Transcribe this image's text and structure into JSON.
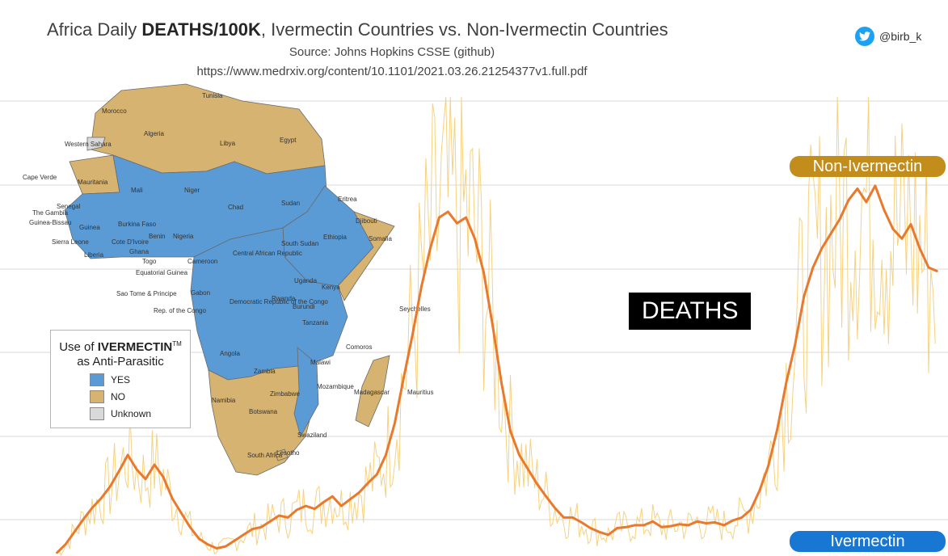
{
  "header": {
    "title_pre": "Africa Daily ",
    "title_bold": "DEATHS/100K",
    "title_post": ", Ivermectin Countries vs. Non-Ivermectin Countries",
    "source": "Source: Johns Hopkins CSSE (github)",
    "url": "https://www.medrxiv.org/content/10.1101/2021.03.26.21254377v1.full.pdf"
  },
  "social": {
    "handle": "@birb_k",
    "icon": "twitter-bird-icon"
  },
  "annotation": {
    "deaths": "DEATHS"
  },
  "legend": {
    "title_pre": "Use of ",
    "title_bold": "IVERMECTIN",
    "title_tm": "TM",
    "title_line2": "as Anti-Parasitic",
    "items": [
      {
        "label": "YES",
        "color": "#5b9bd5"
      },
      {
        "label": "NO",
        "color": "#d6b370"
      },
      {
        "label": "Unknown",
        "color": "#d9d9d9"
      }
    ]
  },
  "map": {
    "labels": [
      "Tunisia",
      "Morocco",
      "Algeria",
      "Libya",
      "Egypt",
      "Western Sahara",
      "Mauritania",
      "Mali",
      "Niger",
      "Chad",
      "Sudan",
      "Eritrea",
      "Djibouti",
      "Somalia",
      "Ethiopia",
      "Senegal",
      "The Gambia",
      "Guinea-Bissau",
      "Guinea",
      "Burkina Faso",
      "Benin",
      "Nigeria",
      "Sierra Leone",
      "Liberia",
      "Cote D'Ivoire",
      "Ghana",
      "Togo",
      "Cameroon",
      "Central African Republic",
      "South Sudan",
      "Cape Verde",
      "Equatorial Guinea",
      "Sao Tome & Principe",
      "Gabon",
      "Rep. of the Congo",
      "Democratic Republic of the Congo",
      "Uganda",
      "Kenya",
      "Rwanda",
      "Burundi",
      "Tanzania",
      "Seychelles",
      "Comoros",
      "Angola",
      "Zambia",
      "Malawi",
      "Mozambique",
      "Madagascar",
      "Mauritius",
      "Namibia",
      "Zimbabwe",
      "Botswana",
      "Swaziland",
      "South Africa",
      "Lesotho"
    ]
  },
  "colors": {
    "non_ivermectin": "#e9792c",
    "non_ivermectin_label": "#c28d1a",
    "ivermectin": "#1877d2",
    "spikes": "#f5cd72",
    "yes": "#5b9bd5",
    "no": "#d6b370",
    "unknown": "#d9d9d9"
  },
  "chart_data": {
    "type": "line",
    "title": "Africa Daily DEATHS/100K, Ivermectin Countries vs. Non-Ivermectin Countries",
    "xlabel": "",
    "ylabel": "",
    "grid": true,
    "legend": "right",
    "series": [
      {
        "name": "Non-Ivermectin",
        "values": [
          0.3,
          1.2,
          2.5,
          3.8,
          5.0,
          6.0,
          7.2,
          8.8,
          10.5,
          9.0,
          8.0,
          9.5,
          8.2,
          6.0,
          4.5,
          3.0,
          1.8,
          1.2,
          0.8,
          1.0,
          1.6,
          2.2,
          2.8,
          3.0,
          3.6,
          4.2,
          4.0,
          4.8,
          5.2,
          4.9,
          5.6,
          6.2,
          5.2,
          5.9,
          6.6,
          7.6,
          8.5,
          10.5,
          13.8,
          18.5,
          23.0,
          28.0,
          32.0,
          35.2,
          35.8,
          34.6,
          35.2,
          33.0,
          29.5,
          24.0,
          18.0,
          13.0,
          10.5,
          9.0,
          7.5,
          6.2,
          5.0,
          4.0,
          4.0,
          3.5,
          2.9,
          2.5,
          2.2,
          2.9,
          3.0,
          3.2,
          3.2,
          3.6,
          3.0,
          3.1,
          3.3,
          3.2,
          3.6,
          3.4,
          3.5,
          3.2,
          3.7,
          4.0,
          4.8,
          6.8,
          9.4,
          13.2,
          18.0,
          22.0,
          27.0,
          30.0,
          32.0,
          33.5,
          35.0,
          37.0,
          38.2,
          36.8,
          38.5,
          36.0,
          34.0,
          33.0,
          34.5,
          32.0,
          30.0,
          29.6
        ]
      },
      {
        "name": "Ivermectin",
        "values": [
          0.0,
          0.0,
          0.0,
          0.0,
          0.0,
          0.0,
          0.0,
          0.0,
          0.0,
          0.0,
          0.0,
          0.0,
          0.0,
          0.0,
          0.0,
          0.0,
          0.0,
          0.0,
          0.0,
          0.0,
          0.0,
          0.0,
          0.0,
          0.0,
          0.0,
          0.0,
          0.0,
          0.0,
          0.0,
          0.0,
          0.0,
          0.0,
          0.0,
          0.0,
          0.0,
          0.0,
          0.0,
          0.0,
          0.0,
          0.0,
          0.0,
          0.0,
          0.0,
          0.0,
          0.0,
          0.0,
          0.0,
          0.0,
          0.0,
          0.0,
          0.0,
          0.0,
          0.0,
          0.0,
          0.0,
          0.0,
          0.0,
          0.0,
          0.0,
          0.0,
          0.0,
          0.0,
          0.0,
          0.0,
          0.0,
          0.0,
          0.0,
          0.0,
          0.0,
          0.0,
          0.0,
          0.0,
          0.0,
          0.0,
          0.0,
          0.0,
          0.0,
          0.0,
          0.0,
          0.0,
          0.0,
          0.0,
          0.0,
          0.0,
          0.0,
          0.0,
          0.0,
          0.0,
          0.0,
          0.0,
          0.0,
          0.0,
          0.0,
          0.0,
          0.0,
          0.0,
          0.0,
          0.0,
          0.0,
          0.0
        ]
      }
    ]
  }
}
